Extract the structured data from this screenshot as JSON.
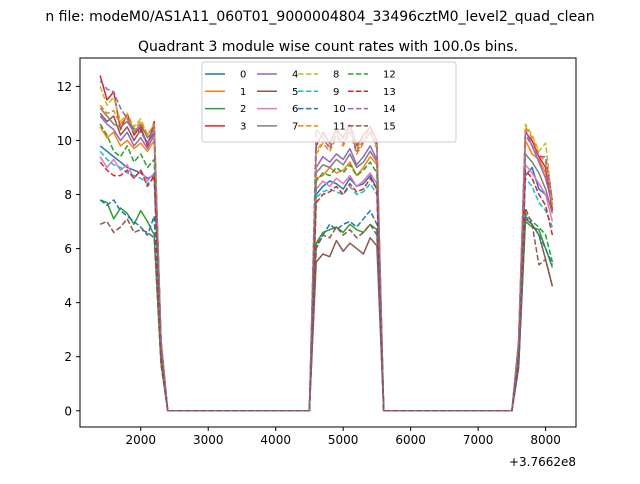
{
  "figure": {
    "suptitle": "n file: modeM0/AS1A11_060T01_9000004804_33496cztM0_level2_quad_clean",
    "title": "Quadrant 3 module wise count rates with 100.0s bins.",
    "offset_label": "+3.7662e8"
  },
  "chart_data": {
    "type": "line",
    "title": "Quadrant 3 module wise count rates with 100.0s bins.",
    "xlabel": "",
    "ylabel": "",
    "x_offset": 376620000,
    "xlim": [
      1100,
      8450
    ],
    "ylim": [
      -0.6,
      13.05
    ],
    "xticks": [
      2000,
      3000,
      4000,
      5000,
      6000,
      7000,
      8000
    ],
    "yticks": [
      0,
      2,
      4,
      6,
      8,
      10,
      12
    ],
    "grid": false,
    "legend": {
      "placement": "top-center",
      "ncol": 4
    },
    "x": [
      1400,
      1500,
      1600,
      1700,
      1800,
      1900,
      2000,
      2100,
      2200,
      2300,
      2400,
      2500,
      2600,
      2700,
      2800,
      2900,
      3000,
      3100,
      3200,
      3300,
      3400,
      3500,
      3600,
      3700,
      3800,
      3900,
      4000,
      4100,
      4200,
      4300,
      4400,
      4500,
      4600,
      4700,
      4800,
      4900,
      5000,
      5100,
      5200,
      5300,
      5400,
      5500,
      5600,
      5700,
      5800,
      5900,
      6000,
      6100,
      6200,
      6300,
      6400,
      6500,
      6600,
      6700,
      6800,
      6900,
      7000,
      7100,
      7200,
      7300,
      7400,
      7500,
      7600,
      7700,
      7800,
      7900,
      8000,
      8100
    ],
    "series": [
      {
        "name": "0",
        "color": "#1f77b4",
        "dash": "solid",
        "values": [
          9.8,
          9.6,
          9.4,
          9.2,
          9.0,
          8.9,
          8.8,
          8.6,
          8.7,
          2.2,
          0,
          0,
          0,
          0,
          0,
          0,
          0,
          0,
          0,
          0,
          0,
          0,
          0,
          0,
          0,
          0,
          0,
          0,
          0,
          0,
          0,
          0,
          8.0,
          8.3,
          8.5,
          8.4,
          8.2,
          8.6,
          8.3,
          8.4,
          8.7,
          8.2,
          0,
          0,
          0,
          0,
          0,
          0,
          0,
          0,
          0,
          0,
          0,
          0,
          0,
          0,
          0,
          0,
          0,
          0,
          0,
          0,
          2.0,
          8.7,
          9.0,
          8.2,
          8.0,
          7.5
        ]
      },
      {
        "name": "1",
        "color": "#ff7f0e",
        "dash": "solid",
        "values": [
          10.5,
          10.1,
          10.3,
          9.8,
          10.0,
          9.7,
          9.9,
          9.6,
          10.0,
          2.5,
          0,
          0,
          0,
          0,
          0,
          0,
          0,
          0,
          0,
          0,
          0,
          0,
          0,
          0,
          0,
          0,
          0,
          0,
          0,
          0,
          0,
          0,
          8.6,
          8.7,
          9.0,
          8.8,
          8.9,
          9.2,
          8.7,
          9.0,
          9.4,
          9.1,
          0,
          0,
          0,
          0,
          0,
          0,
          0,
          0,
          0,
          0,
          0,
          0,
          0,
          0,
          0,
          0,
          0,
          0,
          0,
          0,
          2.3,
          10.0,
          9.5,
          9.3,
          8.8,
          7.8
        ]
      },
      {
        "name": "2",
        "color": "#2ca02c",
        "dash": "solid",
        "values": [
          7.8,
          7.7,
          7.1,
          7.5,
          7.3,
          6.9,
          7.4,
          7.0,
          6.5,
          1.8,
          0,
          0,
          0,
          0,
          0,
          0,
          0,
          0,
          0,
          0,
          0,
          0,
          0,
          0,
          0,
          0,
          0,
          0,
          0,
          0,
          0,
          0,
          6.2,
          6.6,
          6.7,
          6.8,
          6.6,
          6.9,
          6.7,
          6.6,
          6.9,
          6.7,
          0,
          0,
          0,
          0,
          0,
          0,
          0,
          0,
          0,
          0,
          0,
          0,
          0,
          0,
          0,
          0,
          0,
          0,
          0,
          0,
          1.6,
          7.0,
          6.8,
          6.7,
          6.0,
          5.3
        ]
      },
      {
        "name": "3",
        "color": "#d62728",
        "dash": "solid",
        "values": [
          12.4,
          11.5,
          11.8,
          10.4,
          11.0,
          10.2,
          10.5,
          9.8,
          10.7,
          2.6,
          0,
          0,
          0,
          0,
          0,
          0,
          0,
          0,
          0,
          0,
          0,
          0,
          0,
          0,
          0,
          0,
          0,
          0,
          0,
          0,
          0,
          0,
          9.8,
          10.3,
          9.9,
          10.4,
          10.1,
          10.6,
          9.8,
          10.2,
          10.5,
          10.0,
          0,
          0,
          0,
          0,
          0,
          0,
          0,
          0,
          0,
          0,
          0,
          0,
          0,
          0,
          0,
          0,
          0,
          0,
          0,
          0,
          2.5,
          10.3,
          10.0,
          9.4,
          9.0,
          7.4
        ]
      },
      {
        "name": "4",
        "color": "#9467bd",
        "dash": "solid",
        "values": [
          10.9,
          10.6,
          10.4,
          10.0,
          10.3,
          9.8,
          10.1,
          9.7,
          10.2,
          2.5,
          0,
          0,
          0,
          0,
          0,
          0,
          0,
          0,
          0,
          0,
          0,
          0,
          0,
          0,
          0,
          0,
          0,
          0,
          0,
          0,
          0,
          0,
          9.0,
          9.4,
          9.2,
          9.5,
          9.3,
          9.7,
          9.1,
          9.4,
          9.8,
          9.3,
          0,
          0,
          0,
          0,
          0,
          0,
          0,
          0,
          0,
          0,
          0,
          0,
          0,
          0,
          0,
          0,
          0,
          0,
          0,
          0,
          2.4,
          10.4,
          9.8,
          9.2,
          8.6,
          7.6
        ]
      },
      {
        "name": "5",
        "color": "#8c564b",
        "dash": "solid",
        "values": [
          11.0,
          10.7,
          10.9,
          10.2,
          10.5,
          10.0,
          10.4,
          9.9,
          10.3,
          2.6,
          0,
          0,
          0,
          0,
          0,
          0,
          0,
          0,
          0,
          0,
          0,
          0,
          0,
          0,
          0,
          0,
          0,
          0,
          0,
          0,
          0,
          0,
          5.5,
          5.8,
          5.7,
          6.3,
          5.9,
          6.2,
          6.0,
          5.8,
          6.4,
          6.1,
          0,
          0,
          0,
          0,
          0,
          0,
          0,
          0,
          0,
          0,
          0,
          0,
          0,
          0,
          0,
          0,
          0,
          0,
          0,
          0,
          1.8,
          7.1,
          6.9,
          6.5,
          5.6,
          4.6
        ]
      },
      {
        "name": "6",
        "color": "#e377c2",
        "dash": "solid",
        "values": [
          9.4,
          9.0,
          9.3,
          8.9,
          9.1,
          8.6,
          8.9,
          8.5,
          8.8,
          2.2,
          0,
          0,
          0,
          0,
          0,
          0,
          0,
          0,
          0,
          0,
          0,
          0,
          0,
          0,
          0,
          0,
          0,
          0,
          0,
          0,
          0,
          0,
          8.2,
          8.5,
          8.3,
          8.6,
          8.4,
          8.7,
          8.3,
          8.5,
          8.8,
          8.4,
          0,
          0,
          0,
          0,
          0,
          0,
          0,
          0,
          0,
          0,
          0,
          0,
          0,
          0,
          0,
          0,
          0,
          0,
          0,
          0,
          2.1,
          9.1,
          8.8,
          8.4,
          8.0,
          7.0
        ]
      },
      {
        "name": "7",
        "color": "#7f7f7f",
        "dash": "solid",
        "values": [
          11.2,
          10.9,
          10.6,
          10.5,
          10.7,
          10.3,
          10.6,
          10.1,
          10.4,
          2.6,
          0,
          0,
          0,
          0,
          0,
          0,
          0,
          0,
          0,
          0,
          0,
          0,
          0,
          0,
          0,
          0,
          0,
          0,
          0,
          0,
          0,
          0,
          8.8,
          9.1,
          9.0,
          9.3,
          9.1,
          9.5,
          9.0,
          9.2,
          9.6,
          9.2,
          0,
          0,
          0,
          0,
          0,
          0,
          0,
          0,
          0,
          0,
          0,
          0,
          0,
          0,
          0,
          0,
          0,
          0,
          0,
          0,
          2.3,
          9.5,
          9.2,
          8.8,
          8.2,
          7.3
        ]
      },
      {
        "name": "8",
        "color": "#bcbd22",
        "dash": "dashed",
        "values": [
          12.0,
          11.3,
          11.6,
          10.7,
          11.0,
          10.5,
          10.8,
          10.2,
          10.6,
          2.6,
          0,
          0,
          0,
          0,
          0,
          0,
          0,
          0,
          0,
          0,
          0,
          0,
          0,
          0,
          0,
          0,
          0,
          0,
          0,
          0,
          0,
          0,
          9.6,
          10.0,
          9.8,
          10.3,
          9.9,
          10.5,
          9.7,
          10.1,
          10.4,
          9.9,
          0,
          0,
          0,
          0,
          0,
          0,
          0,
          0,
          0,
          0,
          0,
          0,
          0,
          0,
          0,
          0,
          0,
          0,
          0,
          0,
          2.6,
          10.6,
          10.2,
          9.6,
          9.9,
          7.7
        ]
      },
      {
        "name": "9",
        "color": "#17becf",
        "dash": "dashed",
        "values": [
          9.6,
          9.3,
          9.1,
          9.0,
          8.8,
          8.7,
          8.6,
          8.4,
          8.6,
          2.2,
          0,
          0,
          0,
          0,
          0,
          0,
          0,
          0,
          0,
          0,
          0,
          0,
          0,
          0,
          0,
          0,
          0,
          0,
          0,
          0,
          0,
          0,
          7.9,
          8.1,
          8.2,
          8.1,
          8.0,
          8.3,
          8.0,
          8.1,
          8.4,
          8.0,
          0,
          0,
          0,
          0,
          0,
          0,
          0,
          0,
          0,
          0,
          0,
          0,
          0,
          0,
          0,
          0,
          0,
          0,
          0,
          0,
          2.0,
          8.6,
          8.3,
          7.7,
          7.4,
          6.8
        ]
      },
      {
        "name": "10",
        "color": "#1f77b4",
        "dash": "dashed",
        "values": [
          7.8,
          7.6,
          7.8,
          7.4,
          7.2,
          7.0,
          6.8,
          6.5,
          7.2,
          1.8,
          0,
          0,
          0,
          0,
          0,
          0,
          0,
          0,
          0,
          0,
          0,
          0,
          0,
          0,
          0,
          0,
          0,
          0,
          0,
          0,
          0,
          0,
          6.0,
          6.5,
          6.9,
          6.7,
          6.9,
          7.0,
          6.8,
          7.1,
          7.4,
          6.9,
          0,
          0,
          0,
          0,
          0,
          0,
          0,
          0,
          0,
          0,
          0,
          0,
          0,
          0,
          0,
          0,
          0,
          0,
          0,
          0,
          1.6,
          7.2,
          6.9,
          6.5,
          6.0,
          5.4
        ]
      },
      {
        "name": "11",
        "color": "#ff7f0e",
        "dash": "dashed",
        "values": [
          11.3,
          11.0,
          11.1,
          10.6,
          10.9,
          10.4,
          10.7,
          10.2,
          10.6,
          2.6,
          0,
          0,
          0,
          0,
          0,
          0,
          0,
          0,
          0,
          0,
          0,
          0,
          0,
          0,
          0,
          0,
          0,
          0,
          0,
          0,
          0,
          0,
          9.5,
          9.9,
          9.6,
          10.1,
          9.8,
          10.3,
          9.5,
          9.9,
          10.3,
          9.7,
          0,
          0,
          0,
          0,
          0,
          0,
          0,
          0,
          0,
          0,
          0,
          0,
          0,
          0,
          0,
          0,
          0,
          0,
          0,
          0,
          2.5,
          10.5,
          10.1,
          9.5,
          9.2,
          7.6
        ]
      },
      {
        "name": "12",
        "color": "#2ca02c",
        "dash": "dashed",
        "values": [
          10.6,
          10.2,
          9.6,
          9.4,
          9.8,
          9.2,
          9.5,
          9.0,
          9.3,
          2.3,
          0,
          0,
          0,
          0,
          0,
          0,
          0,
          0,
          0,
          0,
          0,
          0,
          0,
          0,
          0,
          0,
          0,
          0,
          0,
          0,
          0,
          0,
          8.5,
          8.8,
          8.7,
          9.0,
          8.8,
          9.1,
          8.7,
          8.9,
          9.2,
          8.8,
          0,
          0,
          0,
          0,
          0,
          0,
          0,
          0,
          0,
          0,
          0,
          0,
          0,
          0,
          0,
          0,
          0,
          0,
          0,
          0,
          2.2,
          7.3,
          7.0,
          6.8,
          6.5,
          5.5
        ]
      },
      {
        "name": "13",
        "color": "#d62728",
        "dash": "dashed",
        "values": [
          9.2,
          8.9,
          8.7,
          8.7,
          8.9,
          8.6,
          8.9,
          8.3,
          8.7,
          2.2,
          0,
          0,
          0,
          0,
          0,
          0,
          0,
          0,
          0,
          0,
          0,
          0,
          0,
          0,
          0,
          0,
          0,
          0,
          0,
          0,
          0,
          0,
          7.7,
          8.0,
          8.1,
          8.3,
          8.0,
          8.4,
          8.1,
          8.2,
          8.6,
          8.2,
          0,
          0,
          0,
          0,
          0,
          0,
          0,
          0,
          0,
          0,
          0,
          0,
          0,
          0,
          0,
          0,
          0,
          0,
          0,
          0,
          2.0,
          8.9,
          8.6,
          8.0,
          7.6,
          6.5
        ]
      },
      {
        "name": "14",
        "color": "#9467bd",
        "dash": "dashed",
        "values": [
          12.2,
          11.9,
          11.8,
          11.2,
          10.8,
          10.4,
          10.3,
          9.9,
          10.5,
          2.6,
          0,
          0,
          0,
          0,
          0,
          0,
          0,
          0,
          0,
          0,
          0,
          0,
          0,
          0,
          0,
          0,
          0,
          0,
          0,
          0,
          0,
          0,
          10.4,
          10.1,
          9.7,
          10.2,
          9.9,
          10.4,
          9.6,
          10.0,
          10.3,
          9.8,
          0,
          0,
          0,
          0,
          0,
          0,
          0,
          0,
          0,
          0,
          0,
          0,
          0,
          0,
          0,
          0,
          0,
          0,
          0,
          0,
          2.6,
          10.2,
          9.8,
          9.4,
          9.4,
          7.8
        ]
      },
      {
        "name": "15",
        "color": "#8c564b",
        "dash": "dashed",
        "values": [
          6.9,
          7.0,
          6.6,
          6.8,
          7.1,
          6.6,
          6.7,
          6.6,
          6.4,
          1.7,
          0,
          0,
          0,
          0,
          0,
          0,
          0,
          0,
          0,
          0,
          0,
          0,
          0,
          0,
          0,
          0,
          0,
          0,
          0,
          0,
          0,
          0,
          6.1,
          6.5,
          6.4,
          6.8,
          6.5,
          6.7,
          6.4,
          6.6,
          6.9,
          6.5,
          0,
          0,
          0,
          0,
          0,
          0,
          0,
          0,
          0,
          0,
          0,
          0,
          0,
          0,
          0,
          0,
          0,
          0,
          0,
          0,
          1.6,
          7.5,
          6.9,
          5.4,
          5.6,
          4.6
        ]
      }
    ]
  }
}
